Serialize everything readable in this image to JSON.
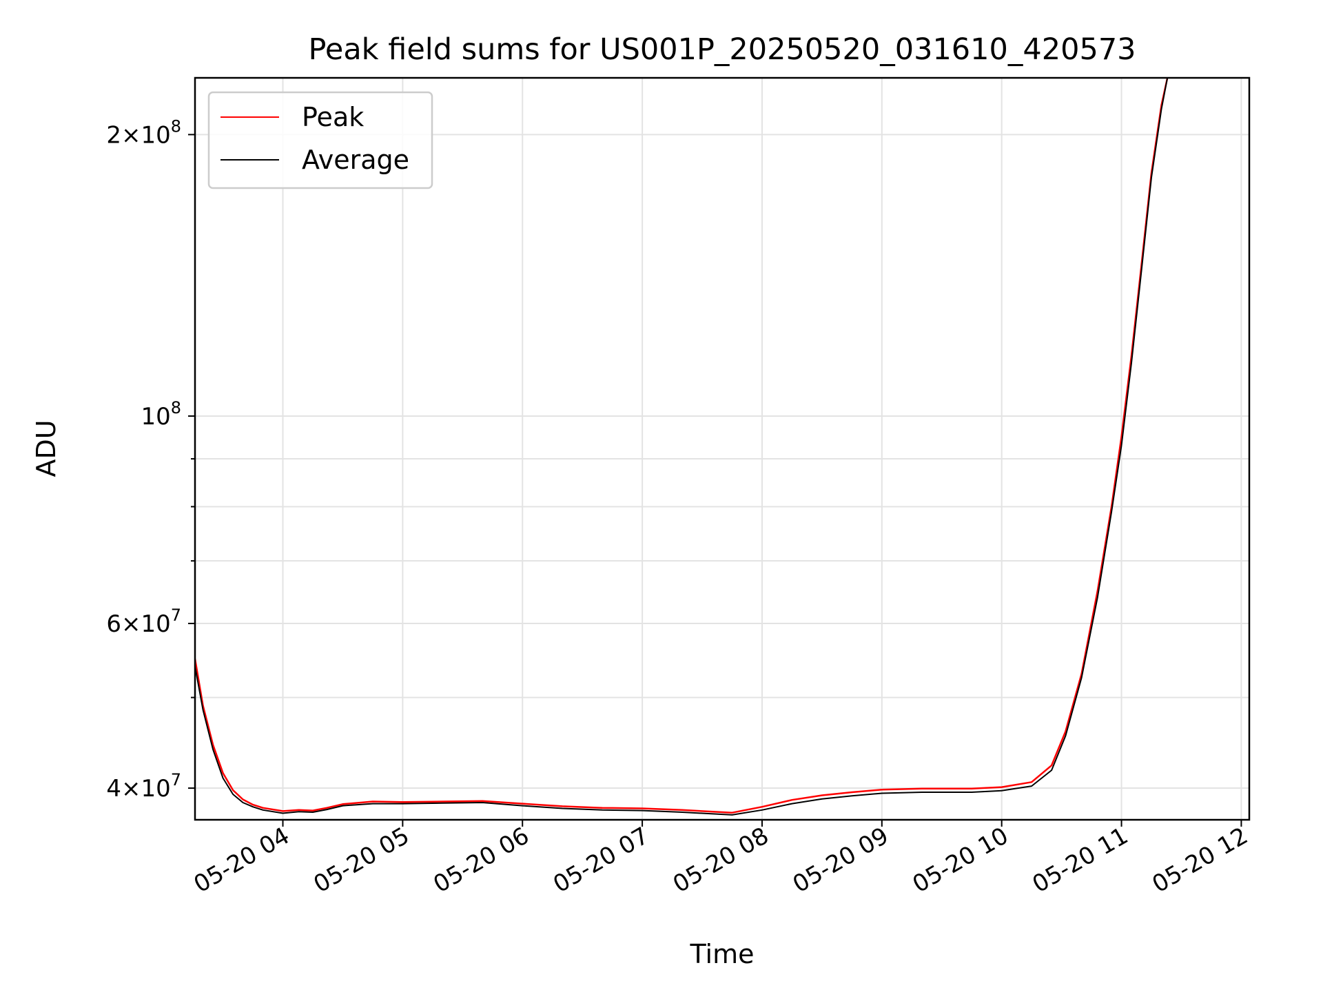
{
  "chart_data": {
    "type": "line",
    "title": "Peak field sums for US001P_20250520_031610_420573",
    "xlabel": "Time",
    "ylabel": "ADU",
    "x_axis": "time",
    "y_scale": "log",
    "grid": true,
    "legend_position": "top-left",
    "xlim": [
      "05-20 03:16",
      "05-20 12:04"
    ],
    "ylim": [
      37000000,
      230000000
    ],
    "x_ticks": [
      "05-20 04",
      "05-20 05",
      "05-20 06",
      "05-20 07",
      "05-20 08",
      "05-20 09",
      "05-20 10",
      "05-20 11",
      "05-20 12"
    ],
    "x_tick_times": [
      "04:00",
      "05:00",
      "06:00",
      "07:00",
      "08:00",
      "09:00",
      "10:00",
      "11:00",
      "12:00"
    ],
    "y_ticks_major": [
      {
        "value": 40000000,
        "mantissa": "4",
        "exp": "7"
      },
      {
        "value": 60000000,
        "mantissa": "6",
        "exp": "7"
      },
      {
        "value": 100000000,
        "mantissa": "",
        "exp": "8"
      },
      {
        "value": 200000000,
        "mantissa": "2",
        "exp": "8"
      }
    ],
    "y_ticks_minor": [
      50000000,
      70000000,
      80000000,
      90000000
    ],
    "series": [
      {
        "name": "Peak",
        "color": "#ff0000",
        "points": [
          [
            "03:16",
            55000000
          ],
          [
            "03:20",
            49000000
          ],
          [
            "03:25",
            44500000
          ],
          [
            "03:30",
            41500000
          ],
          [
            "03:35",
            39800000
          ],
          [
            "03:40",
            38900000
          ],
          [
            "03:45",
            38400000
          ],
          [
            "03:50",
            38100000
          ],
          [
            "04:00",
            37800000
          ],
          [
            "04:08",
            37900000
          ],
          [
            "04:15",
            37850000
          ],
          [
            "04:22",
            38100000
          ],
          [
            "04:30",
            38450000
          ],
          [
            "04:45",
            38700000
          ],
          [
            "05:00",
            38650000
          ],
          [
            "05:20",
            38700000
          ],
          [
            "05:40",
            38750000
          ],
          [
            "06:00",
            38500000
          ],
          [
            "06:20",
            38250000
          ],
          [
            "06:40",
            38100000
          ],
          [
            "07:00",
            38050000
          ],
          [
            "07:20",
            37900000
          ],
          [
            "07:45",
            37650000
          ],
          [
            "08:00",
            38200000
          ],
          [
            "08:15",
            38850000
          ],
          [
            "08:30",
            39300000
          ],
          [
            "08:45",
            39600000
          ],
          [
            "09:00",
            39850000
          ],
          [
            "09:20",
            39950000
          ],
          [
            "09:45",
            39950000
          ],
          [
            "10:00",
            40100000
          ],
          [
            "10:15",
            40600000
          ],
          [
            "10:25",
            42300000
          ],
          [
            "10:32",
            46000000
          ],
          [
            "10:40",
            53000000
          ],
          [
            "10:48",
            65000000
          ],
          [
            "10:55",
            80000000
          ],
          [
            "11:00",
            95000000
          ],
          [
            "11:05",
            116000000
          ],
          [
            "11:10",
            145000000
          ],
          [
            "11:15",
            182000000
          ],
          [
            "11:20",
            215000000
          ],
          [
            "11:23",
            230000000
          ]
        ]
      },
      {
        "name": "Average",
        "color": "#000000",
        "points": [
          [
            "03:16",
            54000000
          ],
          [
            "03:20",
            48500000
          ],
          [
            "03:25",
            44000000
          ],
          [
            "03:30",
            41000000
          ],
          [
            "03:35",
            39400000
          ],
          [
            "03:40",
            38600000
          ],
          [
            "03:45",
            38200000
          ],
          [
            "03:50",
            37900000
          ],
          [
            "04:00",
            37600000
          ],
          [
            "04:08",
            37750000
          ],
          [
            "04:15",
            37700000
          ],
          [
            "04:22",
            37950000
          ],
          [
            "04:30",
            38300000
          ],
          [
            "04:45",
            38500000
          ],
          [
            "05:00",
            38500000
          ],
          [
            "05:20",
            38550000
          ],
          [
            "05:40",
            38600000
          ],
          [
            "06:00",
            38300000
          ],
          [
            "06:20",
            38050000
          ],
          [
            "06:40",
            37900000
          ],
          [
            "07:00",
            37850000
          ],
          [
            "07:20",
            37700000
          ],
          [
            "07:45",
            37450000
          ],
          [
            "08:00",
            37900000
          ],
          [
            "08:15",
            38500000
          ],
          [
            "08:30",
            38950000
          ],
          [
            "08:45",
            39250000
          ],
          [
            "09:00",
            39500000
          ],
          [
            "09:20",
            39600000
          ],
          [
            "09:45",
            39600000
          ],
          [
            "10:00",
            39750000
          ],
          [
            "10:15",
            40200000
          ],
          [
            "10:25",
            41800000
          ],
          [
            "10:32",
            45500000
          ],
          [
            "10:40",
            52500000
          ],
          [
            "10:48",
            64000000
          ],
          [
            "10:55",
            79000000
          ],
          [
            "11:00",
            93000000
          ],
          [
            "11:05",
            114000000
          ],
          [
            "11:10",
            143000000
          ],
          [
            "11:15",
            180000000
          ],
          [
            "11:20",
            213000000
          ],
          [
            "11:23",
            230000000
          ]
        ]
      }
    ]
  }
}
